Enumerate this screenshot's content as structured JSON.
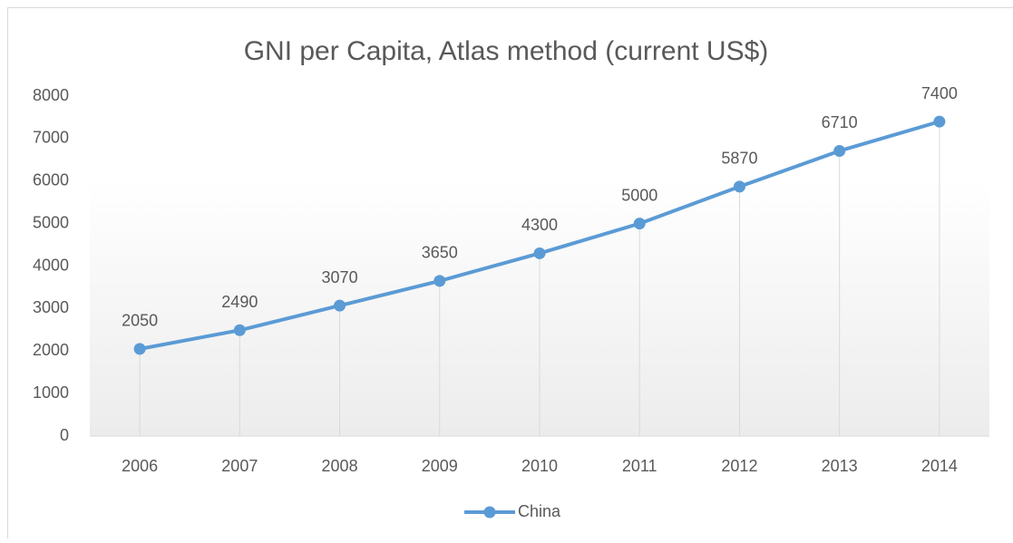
{
  "chart_data": {
    "type": "line",
    "title": "GNI per Capita, Atlas method (current US$)",
    "categories": [
      "2006",
      "2007",
      "2008",
      "2009",
      "2010",
      "2011",
      "2012",
      "2013",
      "2014"
    ],
    "series": [
      {
        "name": "China",
        "color": "#5b9bd5",
        "values": [
          2050,
          2490,
          3070,
          3650,
          4300,
          5000,
          5870,
          6710,
          7400
        ]
      }
    ],
    "ylim": [
      0,
      8000
    ],
    "yticks": [
      0,
      1000,
      2000,
      3000,
      4000,
      5000,
      6000,
      7000,
      8000
    ],
    "grid": false,
    "drop_lines": true,
    "data_labels": true,
    "legend": "bottom"
  }
}
